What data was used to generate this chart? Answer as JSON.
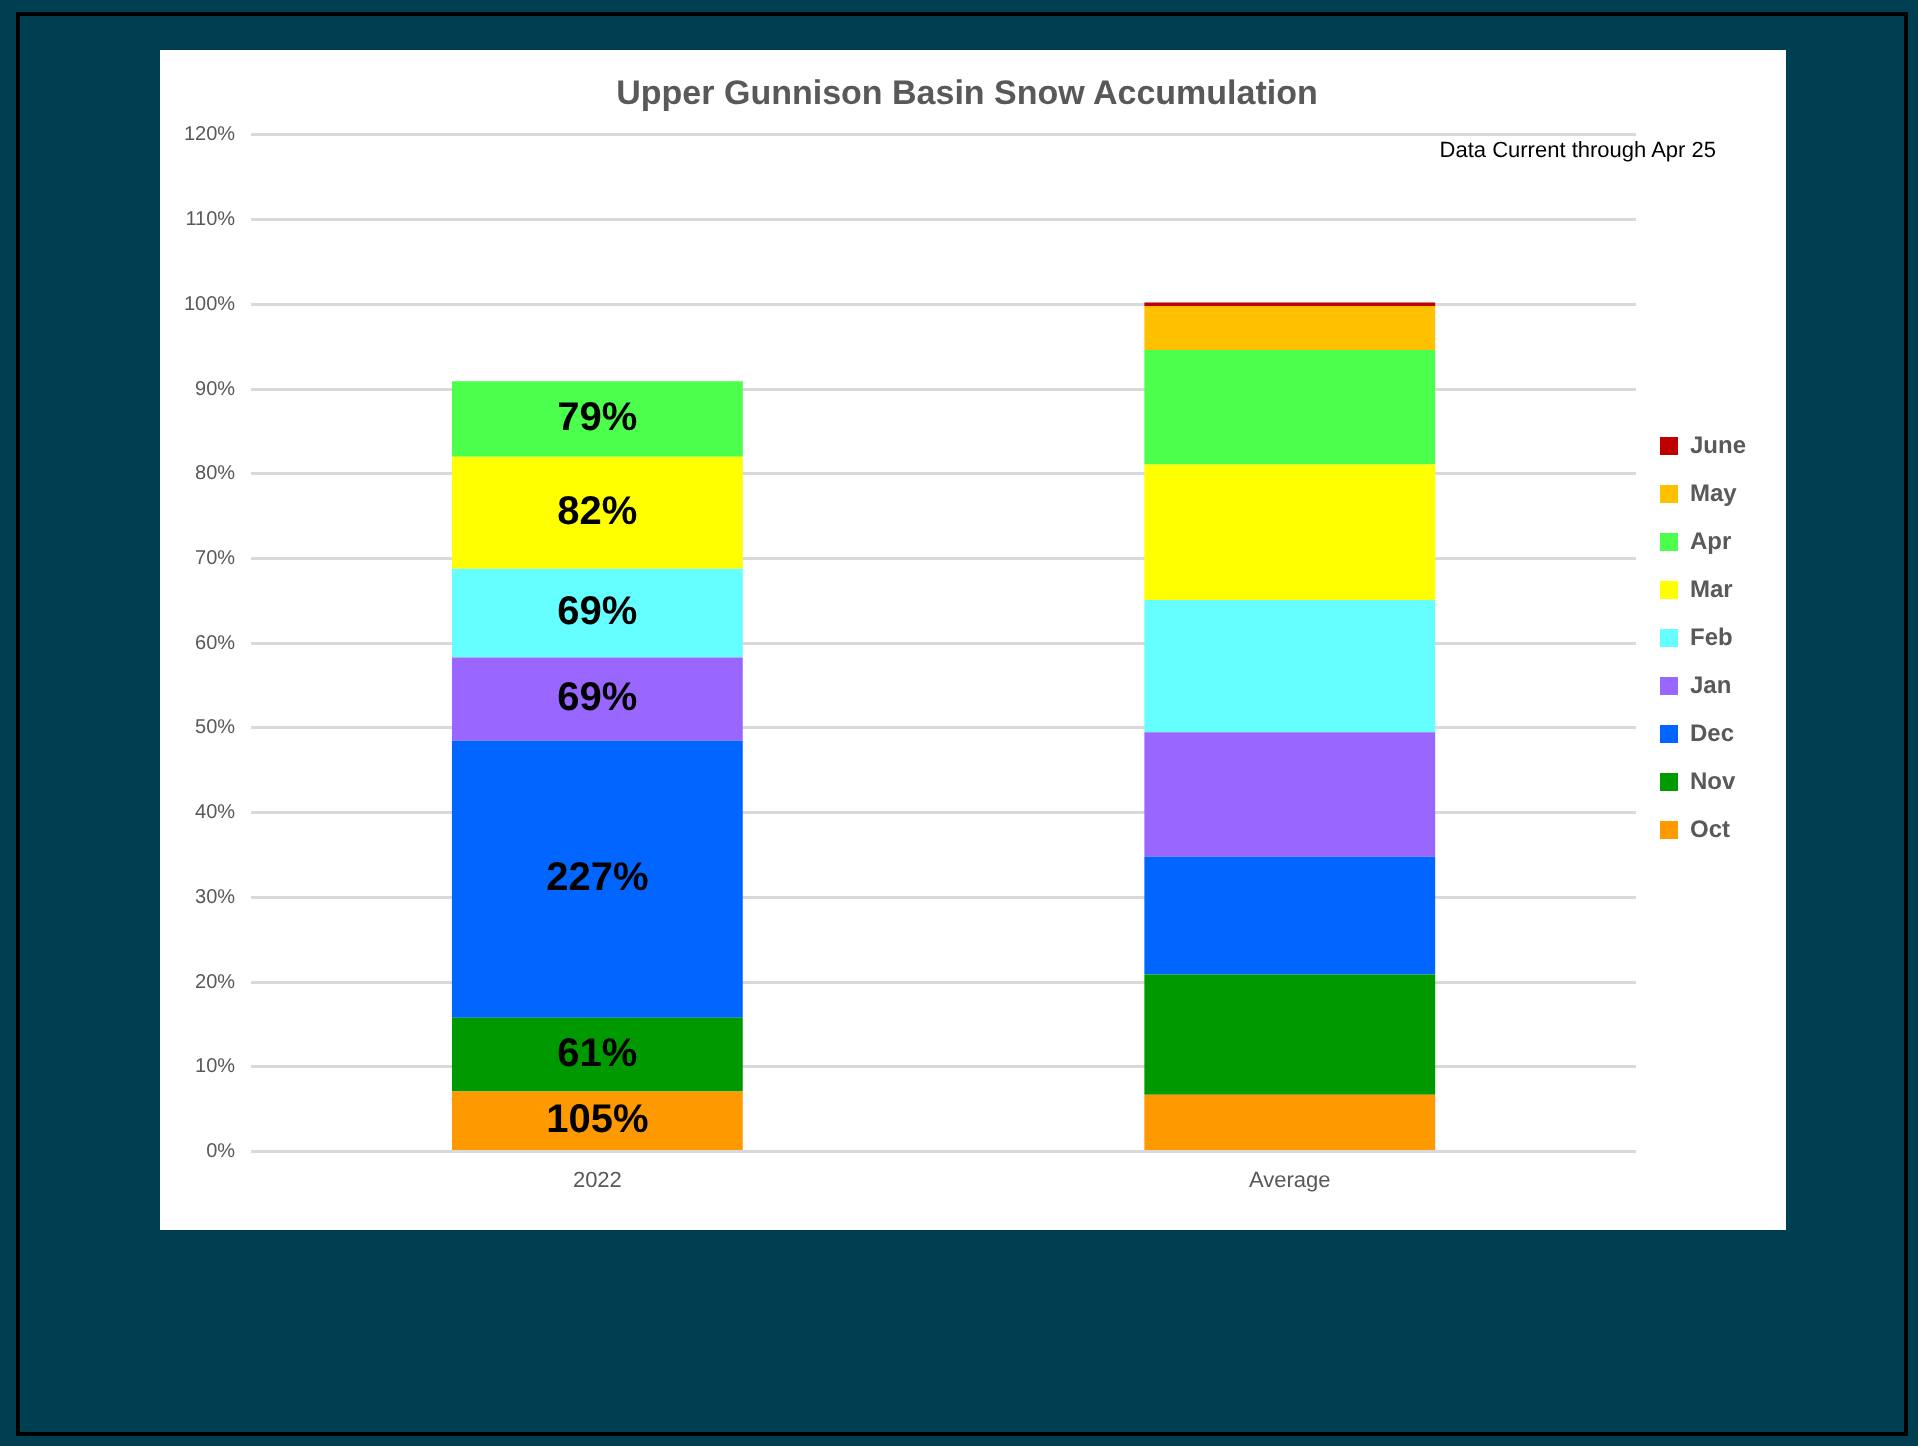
{
  "chart_data": {
    "type": "bar",
    "title": "Upper Gunnison Basin Snow Accumulation",
    "annotations": [
      "Data Current through Apr 25",
      {
        "text": "105%",
        "x": "2022",
        "y": 7.1
      },
      {
        "text": "61%",
        "x": "2022",
        "y": 15.8
      },
      {
        "text": "227%",
        "x": "2022",
        "y": 48.5
      },
      {
        "text": "69%",
        "x": "2022",
        "y": 58.3
      },
      {
        "text": "69%",
        "x": "2022",
        "y": 68.8
      },
      {
        "text": "82%",
        "x": "2022",
        "y": 82.0
      },
      {
        "text": "79%",
        "x": "2022",
        "y": 90.9
      }
    ],
    "categories": [
      "2022",
      "Average"
    ],
    "stacked": true,
    "ylim": [
      0,
      120
    ],
    "yticks": [
      {
        "value": 0,
        "label": "0%"
      },
      {
        "value": 10,
        "label": "10%"
      },
      {
        "value": 20,
        "label": "20%"
      },
      {
        "value": 30,
        "label": "30%"
      },
      {
        "value": 40,
        "label": "40%"
      },
      {
        "value": 50,
        "label": "50%"
      },
      {
        "value": 60,
        "label": "60%"
      },
      {
        "value": 70,
        "label": "70%"
      },
      {
        "value": 80,
        "label": "80%"
      },
      {
        "value": 90,
        "label": "90%"
      },
      {
        "value": 100,
        "label": "100%"
      },
      {
        "value": 110,
        "label": "110%"
      },
      {
        "value": 120,
        "label": "120%"
      }
    ],
    "grid": "y",
    "legend": "right",
    "series": [
      {
        "name": "Oct",
        "color": "#ff9900",
        "values": [
          7.1,
          6.7
        ]
      },
      {
        "name": "Nov",
        "color": "#009900",
        "values": [
          8.7,
          14.2
        ]
      },
      {
        "name": "Dec",
        "color": "#0066ff",
        "values": [
          32.7,
          13.9
        ]
      },
      {
        "name": "Jan",
        "color": "#9966ff",
        "values": [
          9.8,
          14.7
        ]
      },
      {
        "name": "Feb",
        "color": "#66ffff",
        "values": [
          10.5,
          15.6
        ]
      },
      {
        "name": "Mar",
        "color": "#ffff00",
        "values": [
          13.2,
          16.0
        ]
      },
      {
        "name": "Apr",
        "color": "#4cff4c",
        "values": [
          8.9,
          13.5
        ]
      },
      {
        "name": "May",
        "color": "#ffc000",
        "values": [
          null,
          5.2
        ]
      },
      {
        "name": "June",
        "color": "#c00000",
        "values": [
          null,
          0.4
        ]
      }
    ]
  }
}
